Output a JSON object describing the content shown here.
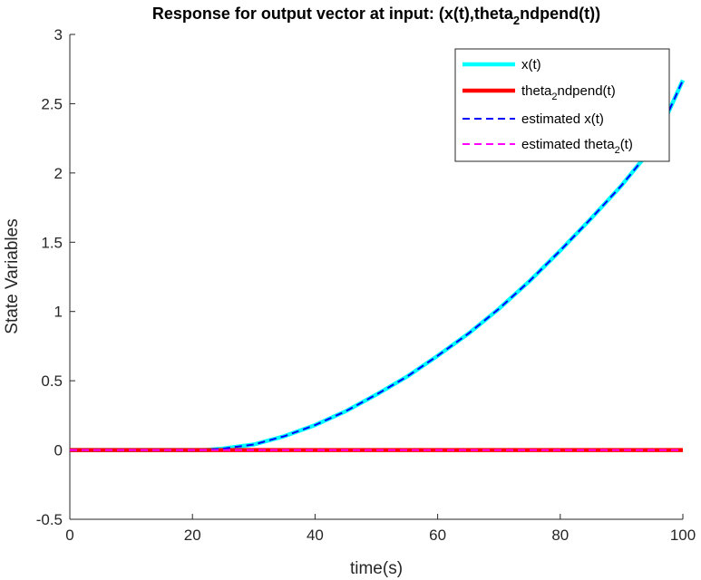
{
  "chart_data": {
    "type": "line",
    "title": {
      "main": "Response for output vector at input: (x(t),theta",
      "sub": "2",
      "end": "ndpend(t))"
    },
    "xlabel": "time(s)",
    "ylabel": "State Variables",
    "xlim": [
      0,
      100
    ],
    "ylim": [
      -0.5,
      3
    ],
    "xticks": [
      "0",
      "20",
      "40",
      "60",
      "80",
      "100"
    ],
    "yticks": [
      "-0.5",
      "0",
      "0.5",
      "1",
      "1.5",
      "2",
      "2.5",
      "3"
    ],
    "grid": false,
    "legend_position": "top-right",
    "series": [
      {
        "name": "x(t)",
        "legend": {
          "main": "x(t)",
          "sub": "",
          "end": ""
        },
        "color": "#00FFFF",
        "style": "solid-thick",
        "x": [
          0,
          10,
          20,
          22,
          25,
          30,
          35,
          40,
          45,
          50,
          55,
          60,
          65,
          70,
          75,
          80,
          85,
          90,
          95,
          100
        ],
        "y": [
          0,
          0,
          0,
          0,
          0.01,
          0.04,
          0.1,
          0.18,
          0.28,
          0.4,
          0.53,
          0.68,
          0.84,
          1.02,
          1.22,
          1.44,
          1.67,
          1.91,
          2.18,
          2.67
        ]
      },
      {
        "name": "theta2ndpend(t)",
        "legend": {
          "main": "theta",
          "sub": "2",
          "end": "ndpend(t)"
        },
        "color": "#FF0000",
        "style": "solid-thick",
        "x": [
          0,
          100
        ],
        "y": [
          0,
          0
        ]
      },
      {
        "name": "estimated x(t)",
        "legend": {
          "main": "estimated x(t)",
          "sub": "",
          "end": ""
        },
        "color": "#0000FF",
        "style": "dashed",
        "x": [
          0,
          10,
          20,
          22,
          25,
          30,
          35,
          40,
          45,
          50,
          55,
          60,
          65,
          70,
          75,
          80,
          85,
          90,
          95,
          100
        ],
        "y": [
          0,
          0,
          0,
          0,
          0.01,
          0.04,
          0.1,
          0.18,
          0.28,
          0.4,
          0.53,
          0.68,
          0.84,
          1.02,
          1.22,
          1.44,
          1.67,
          1.91,
          2.18,
          2.67
        ]
      },
      {
        "name": "estimated theta2(t)",
        "legend": {
          "main": "estimated theta",
          "sub": "2",
          "end": "(t)"
        },
        "color": "#FF00FF",
        "style": "dashed",
        "x": [
          0,
          100
        ],
        "y": [
          0,
          0
        ]
      }
    ]
  }
}
